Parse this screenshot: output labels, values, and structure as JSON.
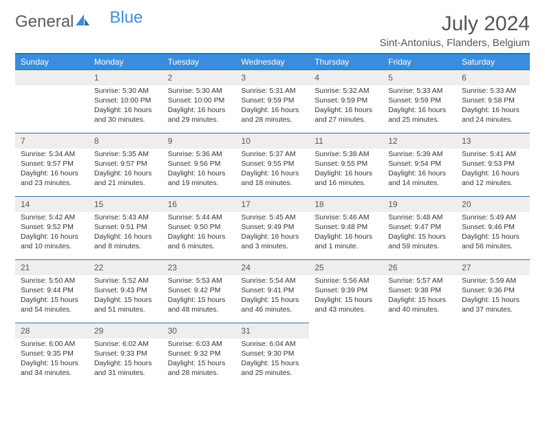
{
  "logo": {
    "part1": "General",
    "part2": "Blue"
  },
  "title": "July 2024",
  "location": "Sint-Antonius, Flanders, Belgium",
  "colors": {
    "header_bg": "#3a8dde",
    "header_border": "#2f6fae",
    "daynum_bg": "#eeeeee",
    "text": "#333333",
    "logo_gray": "#5a5a5a",
    "logo_blue": "#3a8dde"
  },
  "weekdays": [
    "Sunday",
    "Monday",
    "Tuesday",
    "Wednesday",
    "Thursday",
    "Friday",
    "Saturday"
  ],
  "start_weekday": 1,
  "ndays": 31,
  "days": {
    "1": {
      "sunrise": "5:30 AM",
      "sunset": "10:00 PM",
      "daylight": "16 hours and 30 minutes."
    },
    "2": {
      "sunrise": "5:30 AM",
      "sunset": "10:00 PM",
      "daylight": "16 hours and 29 minutes."
    },
    "3": {
      "sunrise": "5:31 AM",
      "sunset": "9:59 PM",
      "daylight": "16 hours and 28 minutes."
    },
    "4": {
      "sunrise": "5:32 AM",
      "sunset": "9:59 PM",
      "daylight": "16 hours and 27 minutes."
    },
    "5": {
      "sunrise": "5:33 AM",
      "sunset": "9:59 PM",
      "daylight": "16 hours and 25 minutes."
    },
    "6": {
      "sunrise": "5:33 AM",
      "sunset": "9:58 PM",
      "daylight": "16 hours and 24 minutes."
    },
    "7": {
      "sunrise": "5:34 AM",
      "sunset": "9:57 PM",
      "daylight": "16 hours and 23 minutes."
    },
    "8": {
      "sunrise": "5:35 AM",
      "sunset": "9:57 PM",
      "daylight": "16 hours and 21 minutes."
    },
    "9": {
      "sunrise": "5:36 AM",
      "sunset": "9:56 PM",
      "daylight": "16 hours and 19 minutes."
    },
    "10": {
      "sunrise": "5:37 AM",
      "sunset": "9:55 PM",
      "daylight": "16 hours and 18 minutes."
    },
    "11": {
      "sunrise": "5:38 AM",
      "sunset": "9:55 PM",
      "daylight": "16 hours and 16 minutes."
    },
    "12": {
      "sunrise": "5:39 AM",
      "sunset": "9:54 PM",
      "daylight": "16 hours and 14 minutes."
    },
    "13": {
      "sunrise": "5:41 AM",
      "sunset": "9:53 PM",
      "daylight": "16 hours and 12 minutes."
    },
    "14": {
      "sunrise": "5:42 AM",
      "sunset": "9:52 PM",
      "daylight": "16 hours and 10 minutes."
    },
    "15": {
      "sunrise": "5:43 AM",
      "sunset": "9:51 PM",
      "daylight": "16 hours and 8 minutes."
    },
    "16": {
      "sunrise": "5:44 AM",
      "sunset": "9:50 PM",
      "daylight": "16 hours and 6 minutes."
    },
    "17": {
      "sunrise": "5:45 AM",
      "sunset": "9:49 PM",
      "daylight": "16 hours and 3 minutes."
    },
    "18": {
      "sunrise": "5:46 AM",
      "sunset": "9:48 PM",
      "daylight": "16 hours and 1 minute."
    },
    "19": {
      "sunrise": "5:48 AM",
      "sunset": "9:47 PM",
      "daylight": "15 hours and 59 minutes."
    },
    "20": {
      "sunrise": "5:49 AM",
      "sunset": "9:46 PM",
      "daylight": "15 hours and 56 minutes."
    },
    "21": {
      "sunrise": "5:50 AM",
      "sunset": "9:44 PM",
      "daylight": "15 hours and 54 minutes."
    },
    "22": {
      "sunrise": "5:52 AM",
      "sunset": "9:43 PM",
      "daylight": "15 hours and 51 minutes."
    },
    "23": {
      "sunrise": "5:53 AM",
      "sunset": "9:42 PM",
      "daylight": "15 hours and 48 minutes."
    },
    "24": {
      "sunrise": "5:54 AM",
      "sunset": "9:41 PM",
      "daylight": "15 hours and 46 minutes."
    },
    "25": {
      "sunrise": "5:56 AM",
      "sunset": "9:39 PM",
      "daylight": "15 hours and 43 minutes."
    },
    "26": {
      "sunrise": "5:57 AM",
      "sunset": "9:38 PM",
      "daylight": "15 hours and 40 minutes."
    },
    "27": {
      "sunrise": "5:59 AM",
      "sunset": "9:36 PM",
      "daylight": "15 hours and 37 minutes."
    },
    "28": {
      "sunrise": "6:00 AM",
      "sunset": "9:35 PM",
      "daylight": "15 hours and 34 minutes."
    },
    "29": {
      "sunrise": "6:02 AM",
      "sunset": "9:33 PM",
      "daylight": "15 hours and 31 minutes."
    },
    "30": {
      "sunrise": "6:03 AM",
      "sunset": "9:32 PM",
      "daylight": "15 hours and 28 minutes."
    },
    "31": {
      "sunrise": "6:04 AM",
      "sunset": "9:30 PM",
      "daylight": "15 hours and 25 minutes."
    }
  },
  "labels": {
    "sunrise": "Sunrise: ",
    "sunset": "Sunset: ",
    "daylight": "Daylight: "
  }
}
